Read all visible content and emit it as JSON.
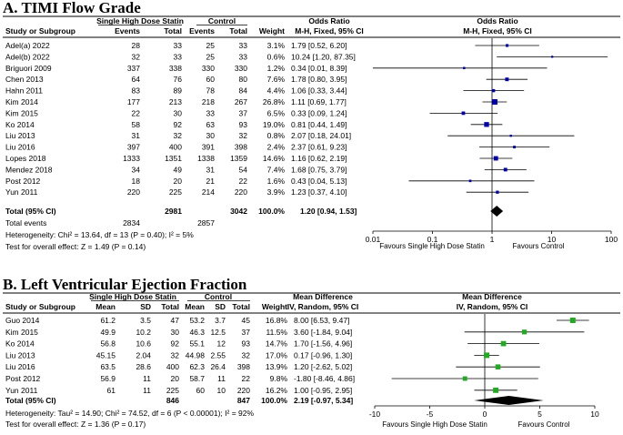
{
  "colors": {
    "point": "#0000aa",
    "point_green": "#22aa22",
    "line": "#000000",
    "rule": "#000000",
    "header_bg": "#d9d9d9",
    "diamond": "#000000"
  },
  "chart_data": [
    {
      "type": "forest",
      "title": "A. TIMI Flow Grade",
      "group1": "Single High Dose Statin",
      "group2": "Control",
      "col_study": "Study or Subgroup",
      "col_events": "Events",
      "col_total": "Total",
      "col_weight": "Weight",
      "effect_title": "Odds Ratio",
      "effect_method": "M-H, Fixed, 95% CI",
      "scale": "log",
      "xlim": [
        0.01,
        100
      ],
      "ticks": [
        "0.01",
        "0.1",
        "1",
        "10",
        "100"
      ],
      "tick_values": [
        0.01,
        0.1,
        1,
        10,
        100
      ],
      "favours_left": "Favours Single High Dose Statin",
      "favours_right": "Favours Control",
      "studies": [
        {
          "name": "Adel(a) 2022",
          "e1": "28",
          "n1": "33",
          "e2": "25",
          "n2": "33",
          "weight": "3.1%",
          "ci_text": "1.79 [0.52, 6.20]",
          "est": 1.79,
          "lo": 0.52,
          "hi": 6.2
        },
        {
          "name": "Adel(b) 2022",
          "e1": "32",
          "n1": "33",
          "e2": "25",
          "n2": "33",
          "weight": "0.6%",
          "ci_text": "10.24 [1.20, 87.35]",
          "est": 10.24,
          "lo": 1.2,
          "hi": 87.35
        },
        {
          "name": "Briguori 2009",
          "e1": "337",
          "n1": "338",
          "e2": "330",
          "n2": "330",
          "weight": "1.2%",
          "ci_text": "0.34 [0.01, 8.39]",
          "est": 0.34,
          "lo": 0.01,
          "hi": 8.39
        },
        {
          "name": "Chen 2013",
          "e1": "64",
          "n1": "76",
          "e2": "60",
          "n2": "80",
          "weight": "7.6%",
          "ci_text": "1.78 [0.80, 3.95]",
          "est": 1.78,
          "lo": 0.8,
          "hi": 3.95
        },
        {
          "name": "Hahn 2011",
          "e1": "83",
          "n1": "89",
          "e2": "78",
          "n2": "84",
          "weight": "4.4%",
          "ci_text": "1.06 [0.33, 3.44]",
          "est": 1.06,
          "lo": 0.33,
          "hi": 3.44
        },
        {
          "name": "Kim 2014",
          "e1": "177",
          "n1": "213",
          "e2": "218",
          "n2": "267",
          "weight": "26.8%",
          "ci_text": "1.11 [0.69, 1.77]",
          "est": 1.11,
          "lo": 0.69,
          "hi": 1.77
        },
        {
          "name": "Kim 2015",
          "e1": "22",
          "n1": "30",
          "e2": "33",
          "n2": "37",
          "weight": "6.5%",
          "ci_text": "0.33 [0.09, 1.24]",
          "est": 0.33,
          "lo": 0.09,
          "hi": 1.24
        },
        {
          "name": "Ko 2014",
          "e1": "58",
          "n1": "92",
          "e2": "63",
          "n2": "93",
          "weight": "19.0%",
          "ci_text": "0.81 [0.44, 1.49]",
          "est": 0.81,
          "lo": 0.44,
          "hi": 1.49
        },
        {
          "name": "Liu 2013",
          "e1": "31",
          "n1": "32",
          "e2": "30",
          "n2": "32",
          "weight": "0.8%",
          "ci_text": "2.07 [0.18, 24.01]",
          "est": 2.07,
          "lo": 0.18,
          "hi": 24.01
        },
        {
          "name": "Liu 2016",
          "e1": "397",
          "n1": "400",
          "e2": "391",
          "n2": "398",
          "weight": "2.4%",
          "ci_text": "2.37 [0.61, 9.23]",
          "est": 2.37,
          "lo": 0.61,
          "hi": 9.23
        },
        {
          "name": "Lopes 2018",
          "e1": "1333",
          "n1": "1351",
          "e2": "1338",
          "n2": "1359",
          "weight": "14.6%",
          "ci_text": "1.16 [0.62, 2.19]",
          "est": 1.16,
          "lo": 0.62,
          "hi": 2.19
        },
        {
          "name": "Mendez 2018",
          "e1": "34",
          "n1": "49",
          "e2": "31",
          "n2": "54",
          "weight": "7.4%",
          "ci_text": "1.68 [0.75, 3.79]",
          "est": 1.68,
          "lo": 0.75,
          "hi": 3.79
        },
        {
          "name": "Post 2012",
          "e1": "18",
          "n1": "20",
          "e2": "21",
          "n2": "22",
          "weight": "1.6%",
          "ci_text": "0.43 [0.04, 5.13]",
          "est": 0.43,
          "lo": 0.04,
          "hi": 5.13
        },
        {
          "name": "Yun 2011",
          "e1": "220",
          "n1": "225",
          "e2": "214",
          "n2": "220",
          "weight": "3.9%",
          "ci_text": "1.23 [0.37, 4.10]",
          "est": 1.23,
          "lo": 0.37,
          "hi": 4.1
        }
      ],
      "total": {
        "label": "Total (95% CI)",
        "n1": "2981",
        "n2": "3042",
        "weight": "100.0%",
        "ci_text": "1.20 [0.94, 1.53]",
        "est": 1.2,
        "lo": 0.94,
        "hi": 1.53
      },
      "total_events": {
        "label": "Total events",
        "e1": "2834",
        "e2": "2857"
      },
      "heterogeneity": "Heterogeneity: Chi² = 13.64, df = 13 (P = 0.40); I² = 5%",
      "overall": "Test for overall effect: Z = 1.49 (P = 0.14)"
    },
    {
      "type": "forest",
      "title": "B. Left Ventricular Ejection Fraction",
      "group1": "Single High Dose Statin",
      "group2": "Control",
      "col_study": "Study or Subgroup",
      "col_mean": "Mean",
      "col_sd": "SD",
      "col_total": "Total",
      "col_weight": "Weight",
      "effect_title": "Mean Difference",
      "effect_method": "IV, Random, 95% CI",
      "scale": "linear",
      "xlim": [
        -10,
        10
      ],
      "ticks": [
        "-10",
        "-5",
        "0",
        "5",
        "10"
      ],
      "tick_values": [
        -10,
        -5,
        0,
        5,
        10
      ],
      "favours_left": "Favours Single High Dose Statin",
      "favours_right": "Favours Control",
      "studies": [
        {
          "name": "Guo 2014",
          "m1": "61.2",
          "sd1": "3.5",
          "n1": "47",
          "m2": "53.2",
          "sd2": "3.7",
          "n2": "45",
          "weight": "16.8%",
          "ci_text": "8.00 [6.53, 9.47]",
          "est": 8.0,
          "lo": 6.53,
          "hi": 9.47
        },
        {
          "name": "Kim 2015",
          "m1": "49.9",
          "sd1": "10.2",
          "n1": "30",
          "m2": "46.3",
          "sd2": "12.5",
          "n2": "37",
          "weight": "11.5%",
          "ci_text": "3.60 [-1.84, 9.04]",
          "est": 3.6,
          "lo": -1.84,
          "hi": 9.04
        },
        {
          "name": "Ko 2014",
          "m1": "56.8",
          "sd1": "10.6",
          "n1": "92",
          "m2": "55.1",
          "sd2": "12",
          "n2": "93",
          "weight": "14.7%",
          "ci_text": "1.70 [-1.56, 4.96]",
          "est": 1.7,
          "lo": -1.56,
          "hi": 4.96
        },
        {
          "name": "Liu 2013",
          "m1": "45.15",
          "sd1": "2.04",
          "n1": "32",
          "m2": "44.98",
          "sd2": "2.55",
          "n2": "32",
          "weight": "17.0%",
          "ci_text": "0.17 [-0.96, 1.30]",
          "est": 0.17,
          "lo": -0.96,
          "hi": 1.3
        },
        {
          "name": "Liu 2016",
          "m1": "63.5",
          "sd1": "28.6",
          "n1": "400",
          "m2": "62.3",
          "sd2": "26.4",
          "n2": "398",
          "weight": "13.9%",
          "ci_text": "1.20 [-2.62, 5.02]",
          "est": 1.2,
          "lo": -2.62,
          "hi": 5.02
        },
        {
          "name": "Post 2012",
          "m1": "56.9",
          "sd1": "11",
          "n1": "20",
          "m2": "58.7",
          "sd2": "11",
          "n2": "22",
          "weight": "9.8%",
          "ci_text": "-1.80 [-8.46, 4.86]",
          "est": -1.8,
          "lo": -8.46,
          "hi": 4.86
        },
        {
          "name": "Yun 2011",
          "m1": "61",
          "sd1": "11",
          "n1": "225",
          "m2": "60",
          "sd2": "10",
          "n2": "220",
          "weight": "16.2%",
          "ci_text": "1.00 [-0.95, 2.95]",
          "est": 1.0,
          "lo": -0.95,
          "hi": 2.95
        }
      ],
      "total": {
        "label": "Total (95% CI)",
        "n1": "846",
        "n2": "847",
        "weight": "100.0%",
        "ci_text": "2.19 [-0.97, 5.34]",
        "est": 2.19,
        "lo": -0.97,
        "hi": 5.34
      },
      "heterogeneity": "Heterogeneity: Tau² = 14.90; Chi² = 74.52, df = 6 (P < 0.00001); I² = 92%",
      "overall": "Test for overall effect: Z = 1.36 (P = 0.17)"
    }
  ]
}
